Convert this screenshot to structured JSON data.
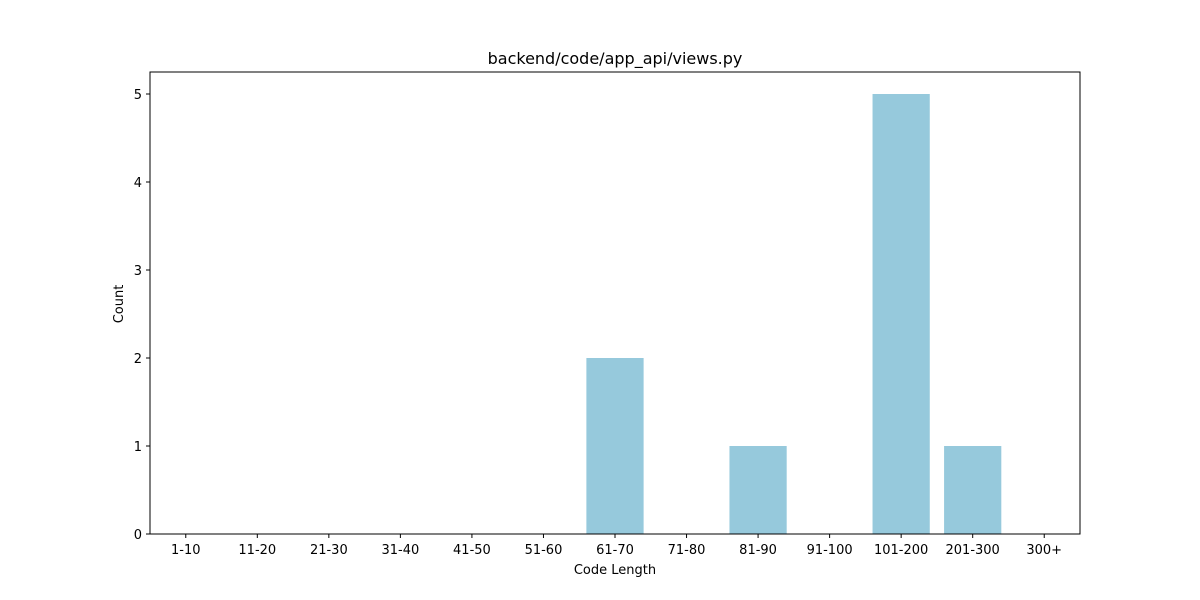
{
  "chart_data": {
    "type": "bar",
    "title": "backend/code/app_api/views.py",
    "xlabel": "Code Length",
    "ylabel": "Count",
    "categories": [
      "1-10",
      "11-20",
      "21-30",
      "31-40",
      "41-50",
      "51-60",
      "61-70",
      "71-80",
      "81-90",
      "91-100",
      "101-200",
      "201-300",
      "300+"
    ],
    "values": [
      0,
      0,
      0,
      0,
      0,
      0,
      2,
      0,
      1,
      0,
      5,
      1,
      0
    ],
    "ylim": [
      0,
      5.25
    ],
    "yticks": [
      0,
      1,
      2,
      3,
      4,
      5
    ],
    "bar_color": "#96c9dc",
    "grid": false,
    "legend": "none"
  }
}
